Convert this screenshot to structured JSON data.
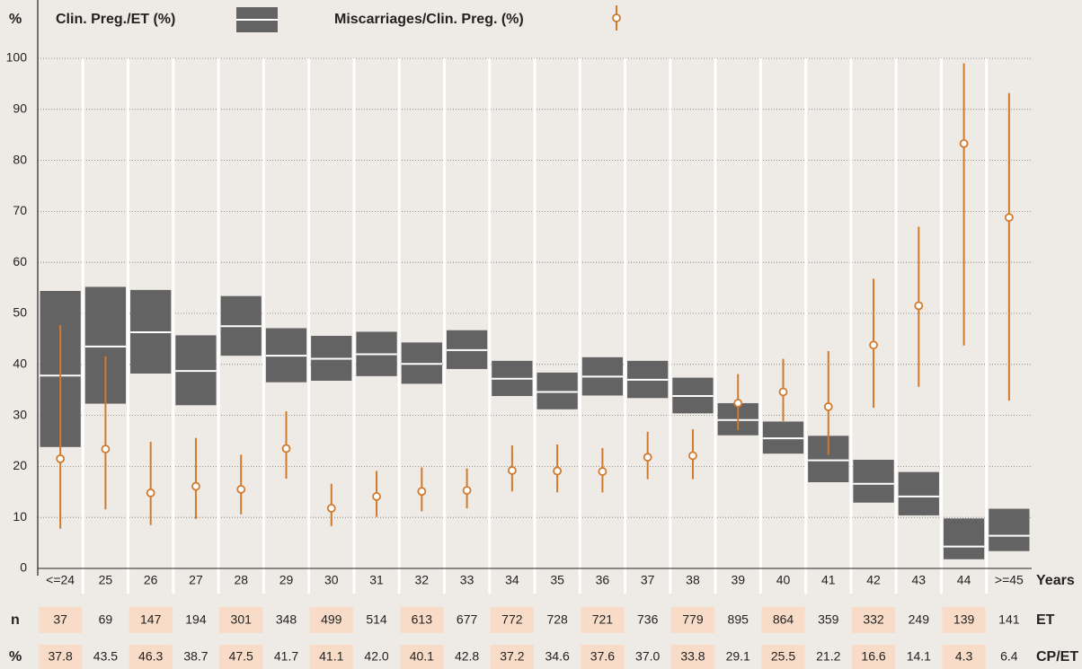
{
  "chart_data": {
    "type": "box-range",
    "y_label": "%",
    "x_label": "Years",
    "categories": [
      "<=24",
      "25",
      "26",
      "27",
      "28",
      "29",
      "30",
      "31",
      "32",
      "33",
      "34",
      "35",
      "36",
      "37",
      "38",
      "39",
      "40",
      "41",
      "42",
      "43",
      "44",
      ">=45"
    ],
    "ylim": [
      0,
      100
    ],
    "yticks": [
      0,
      10,
      20,
      30,
      40,
      50,
      60,
      70,
      80,
      90,
      100
    ],
    "grid": true,
    "series": [
      {
        "name": "Clin. Preg./ET (%)",
        "color": "#636363",
        "values": [
          37.8,
          43.5,
          46.3,
          38.7,
          47.5,
          41.7,
          41.1,
          42.0,
          40.1,
          42.8,
          37.2,
          34.6,
          37.6,
          37.0,
          33.8,
          29.1,
          25.5,
          21.2,
          16.6,
          14.1,
          4.3,
          6.4
        ],
        "value_labels": [
          "37.8",
          "43.5",
          "46.3",
          "38.7",
          "47.5",
          "41.7",
          "41.1",
          "42.0",
          "40.1",
          "42.8",
          "37.2",
          "34.6",
          "37.6",
          "37.0",
          "33.8",
          "29.1",
          "25.5",
          "21.2",
          "16.6",
          "14.1",
          "4.3",
          "6.4"
        ],
        "low": [
          23.8,
          32.3,
          38.2,
          32.0,
          41.7,
          36.5,
          36.8,
          37.7,
          36.2,
          39.1,
          33.8,
          31.2,
          33.9,
          33.4,
          30.4,
          26.1,
          22.5,
          16.9,
          12.9,
          10.4,
          1.8,
          3.4
        ],
        "high": [
          54.4,
          55.2,
          54.6,
          45.7,
          53.4,
          47.1,
          45.6,
          46.4,
          44.3,
          46.7,
          40.7,
          38.4,
          41.4,
          40.7,
          37.4,
          32.4,
          28.8,
          26.0,
          21.3,
          18.9,
          9.8,
          11.7
        ]
      },
      {
        "name": "Miscarriages/Clin. Preg. (%)",
        "color": "#d07a2e",
        "values": [
          21.5,
          23.4,
          14.8,
          16.1,
          15.5,
          23.5,
          11.8,
          14.1,
          15.1,
          15.3,
          19.2,
          19.1,
          19.0,
          21.8,
          22.1,
          32.4,
          34.6,
          31.7,
          43.8,
          51.5,
          83.3,
          68.8
        ],
        "low": [
          7.8,
          11.6,
          8.5,
          9.7,
          10.6,
          17.6,
          8.3,
          10.1,
          11.2,
          11.8,
          15.1,
          14.9,
          14.9,
          17.5,
          17.5,
          27.1,
          28.9,
          22.3,
          31.5,
          35.6,
          43.7,
          32.9
        ],
        "high": [
          47.7,
          41.6,
          24.8,
          25.6,
          22.3,
          30.8,
          16.6,
          19.1,
          19.8,
          19.6,
          24.1,
          24.3,
          23.6,
          26.8,
          27.3,
          38.1,
          41.1,
          42.6,
          56.8,
          67.0,
          99.0,
          93.2
        ]
      }
    ],
    "table": {
      "n_label": "n",
      "n_values": [
        37,
        69,
        147,
        194,
        301,
        348,
        499,
        514,
        613,
        677,
        772,
        728,
        721,
        736,
        779,
        895,
        864,
        359,
        332,
        249,
        139,
        141
      ],
      "n_unit": "ET",
      "pct_label": "%",
      "pct_unit": "CP/ET"
    }
  }
}
